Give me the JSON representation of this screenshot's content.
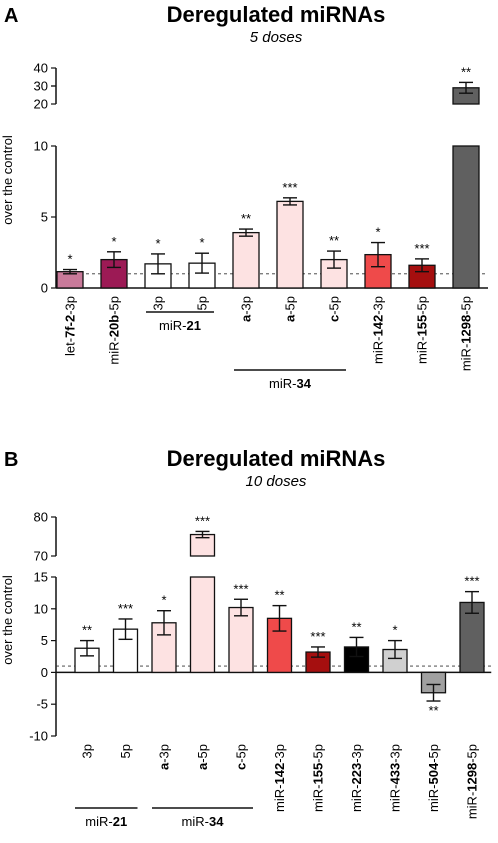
{
  "chart_data": [
    {
      "type": "bar",
      "panel": "A",
      "title": "Deregulated miRNAs",
      "subtitle": "5 doses",
      "ylabel": "over the control",
      "ylim_lower": [
        0,
        10
      ],
      "ylim_upper": [
        20,
        40
      ],
      "yticks_lower": [
        "0",
        "5",
        "10"
      ],
      "yticks_upper": [
        "20",
        "30",
        "40"
      ],
      "reference_line": 1,
      "categories": [
        {
          "pre": "let-",
          "bold": "7f-2",
          "post": "-3p",
          "value": 1.15,
          "err": 0.15,
          "sig": "*",
          "color": "#c97a9a"
        },
        {
          "pre": "miR-",
          "bold": "20b",
          "post": "-5p",
          "value": 2.0,
          "err": 0.55,
          "sig": "*",
          "color": "#9c1a55"
        },
        {
          "pre": "",
          "bold": "",
          "post": "3p",
          "value": 1.7,
          "err": 0.7,
          "sig": "*",
          "color": "#ffffff"
        },
        {
          "pre": "",
          "bold": "",
          "post": "5p",
          "value": 1.75,
          "err": 0.7,
          "sig": "*",
          "color": "#ffffff"
        },
        {
          "pre": "",
          "bold": "a",
          "post": "-3p",
          "value": 3.9,
          "err": 0.25,
          "sig": "**",
          "color": "#fde2e2"
        },
        {
          "pre": "",
          "bold": "a",
          "post": "-5p",
          "value": 6.1,
          "err": 0.25,
          "sig": "***",
          "color": "#fde2e2"
        },
        {
          "pre": "",
          "bold": "c",
          "post": "-5p",
          "value": 2.0,
          "err": 0.6,
          "sig": "**",
          "color": "#fde2e2"
        },
        {
          "pre": "miR-",
          "bold": "142",
          "post": "-3p",
          "value": 2.35,
          "err": 0.85,
          "sig": "*",
          "color": "#ef4a4a"
        },
        {
          "pre": "miR-",
          "bold": "155",
          "post": "-5p",
          "value": 1.6,
          "err": 0.45,
          "sig": "***",
          "color": "#a50f0f"
        },
        {
          "pre": "miR-",
          "bold": "1298",
          "post": "-5p",
          "value": 29,
          "err": 3,
          "sig": "**",
          "color": "#606060"
        }
      ],
      "groups": [
        {
          "label_pre": "miR-",
          "label_bold": "21",
          "from": 2,
          "to": 3
        },
        {
          "label_pre": "miR-",
          "label_bold": "34",
          "from": 4,
          "to": 6
        }
      ]
    },
    {
      "type": "bar",
      "panel": "B",
      "title": "Deregulated miRNAs",
      "subtitle": "10 doses",
      "ylabel": "over the control",
      "ylim_lower": [
        -10,
        15
      ],
      "ylim_upper": [
        70,
        80
      ],
      "yticks_lower": [
        "-10",
        "-5",
        "0",
        "5",
        "10",
        "15"
      ],
      "yticks_upper": [
        "70",
        "80"
      ],
      "reference_line": 1,
      "categories": [
        {
          "pre": "",
          "bold": "",
          "post": "3p",
          "value": 3.8,
          "err": 1.2,
          "sig": "**",
          "color": "#ffffff"
        },
        {
          "pre": "",
          "bold": "",
          "post": "5p",
          "value": 6.8,
          "err": 1.6,
          "sig": "***",
          "color": "#ffffff"
        },
        {
          "pre": "",
          "bold": "a",
          "post": "-3p",
          "value": 7.8,
          "err": 1.9,
          "sig": "*",
          "color": "#fde2e2"
        },
        {
          "pre": "",
          "bold": "a",
          "post": "-5p",
          "value": 75.5,
          "err": 0.8,
          "sig": "***",
          "color": "#fde2e2"
        },
        {
          "pre": "",
          "bold": "c",
          "post": "-5p",
          "value": 10.2,
          "err": 1.3,
          "sig": "***",
          "color": "#fde2e2"
        },
        {
          "pre": "miR-",
          "bold": "142",
          "post": "-3p",
          "value": 8.5,
          "err": 2.0,
          "sig": "**",
          "color": "#ef4a4a"
        },
        {
          "pre": "miR-",
          "bold": "155",
          "post": "-5p",
          "value": 3.2,
          "err": 0.8,
          "sig": "***",
          "color": "#a50f0f"
        },
        {
          "pre": "miR-",
          "bold": "223",
          "post": "-3p",
          "value": 4.0,
          "err": 1.5,
          "sig": "**",
          "color": "#000000"
        },
        {
          "pre": "miR-",
          "bold": "433",
          "post": "-3p",
          "value": 3.6,
          "err": 1.4,
          "sig": "*",
          "color": "#d0d0d0"
        },
        {
          "pre": "miR-",
          "bold": "504",
          "post": "-5p",
          "value": -3.2,
          "err": 1.3,
          "sig": "**",
          "color": "#a0a0a0"
        },
        {
          "pre": "miR-",
          "bold": "1298",
          "post": "-5p",
          "value": 11.0,
          "err": 1.7,
          "sig": "***",
          "color": "#606060"
        }
      ],
      "groups": [
        {
          "label_pre": "miR-",
          "label_bold": "21",
          "from": 0,
          "to": 1
        },
        {
          "label_pre": "miR-",
          "label_bold": "34",
          "from": 2,
          "to": 4
        }
      ]
    }
  ]
}
